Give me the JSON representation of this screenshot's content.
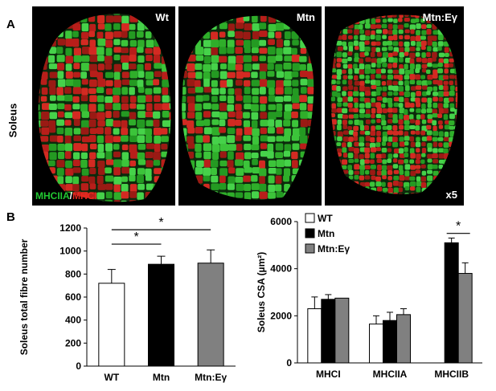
{
  "panel_a": {
    "letter": "A",
    "row_label": "Soleus",
    "images": [
      {
        "label": "Wt",
        "magnification": ""
      },
      {
        "label": "Mtn",
        "magnification": ""
      },
      {
        "label": "Mtn:Eγ",
        "magnification": "x5"
      }
    ],
    "stain_legend": {
      "green": "MHCIIA",
      "separator": "/",
      "red": "MHCI",
      "green_color": "#22c832",
      "red_color": "#e6281e"
    }
  },
  "panel_b": {
    "letter": "B"
  },
  "chart_data": [
    {
      "type": "bar",
      "categories": [
        "WT",
        "Mtn",
        "Mtn:Eγ"
      ],
      "values": [
        720,
        885,
        895
      ],
      "errors": [
        120,
        70,
        115
      ],
      "bar_colors": [
        "#ffffff",
        "#000000",
        "#808080"
      ],
      "ylabel": "Soleus total fibre number",
      "ylim": [
        0,
        1200
      ],
      "yticks": [
        "0",
        "200",
        "400",
        "600",
        "800",
        "1000",
        "1200"
      ],
      "significance": [
        {
          "from": "WT",
          "to": "Mtn",
          "label": "*"
        },
        {
          "from": "WT",
          "to": "Mtn:Eγ",
          "label": "*"
        }
      ]
    },
    {
      "type": "bar",
      "categories": [
        "MHCI",
        "MHCIIA",
        "MHCIIB"
      ],
      "series": [
        {
          "name": "WT",
          "color": "#ffffff",
          "values": [
            2300,
            1650,
            null
          ],
          "errors": [
            500,
            350,
            null
          ]
        },
        {
          "name": "Mtn",
          "color": "#000000",
          "values": [
            2700,
            1800,
            5100
          ],
          "errors": [
            200,
            350,
            200
          ]
        },
        {
          "name": "Mtn:Eγ",
          "color": "#808080",
          "values": [
            2750,
            2050,
            3800
          ],
          "errors": [
            0,
            250,
            450
          ]
        }
      ],
      "ylabel": "Soleus CSA (µm²)",
      "ylim": [
        0,
        6000
      ],
      "yticks": [
        "0",
        "2000",
        "4000",
        "6000"
      ],
      "legend_position": "top-left",
      "significance": [
        {
          "category": "MHCIIB",
          "from": "Mtn",
          "to": "Mtn:Eγ",
          "label": "*"
        }
      ]
    }
  ]
}
